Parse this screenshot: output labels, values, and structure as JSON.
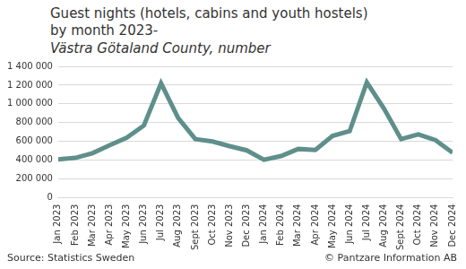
{
  "chart_data": {
    "type": "line",
    "title": [
      "Guest nights (hotels, cabins and youth hostels)",
      "by month 2023-"
    ],
    "subtitle": "Västra Götaland County, number",
    "annotations": [
      "Source: Statistics Sweden",
      "© Pantzare Information AB"
    ],
    "categories": [
      "Jan 2023",
      "Feb 2023",
      "Mar 2023",
      "Apr 2023",
      "May 2023",
      "Jun 2023",
      "Jul 2023",
      "Aug 2023",
      "Sept 2023",
      "Oct 2023",
      "Nov 2023",
      "Dec 2023",
      "Jan 2024",
      "Feb 2024",
      "Mar 2024",
      "Apr 2024",
      "May 2024",
      "Jun 2024",
      "Jul 2024",
      "Aug 2024",
      "Sept 2024",
      "Oct 2024",
      "Nov 2024",
      "Dec 2024"
    ],
    "values": [
      410000,
      425000,
      475000,
      560000,
      640000,
      770000,
      1220000,
      850000,
      625000,
      600000,
      550000,
      505000,
      405000,
      445000,
      520000,
      510000,
      660000,
      710000,
      1230000,
      950000,
      625000,
      675000,
      615000,
      480000
    ],
    "color": "#5f8f8b",
    "ylim": [
      0,
      1400000
    ],
    "yticks": [
      0,
      {
        "value": 200000,
        "label": "200 000"
      },
      {
        "value": 400000,
        "label": "400 000"
      },
      {
        "value": 600000,
        "label": "600 000"
      },
      {
        "value": 800000,
        "label": "800 000"
      },
      {
        "value": 1000000,
        "label": "1 000 000"
      },
      {
        "value": 1200000,
        "label": "1 200 000"
      },
      {
        "value": 1400000,
        "label": "1 400 000"
      }
    ],
    "grid": true
  }
}
